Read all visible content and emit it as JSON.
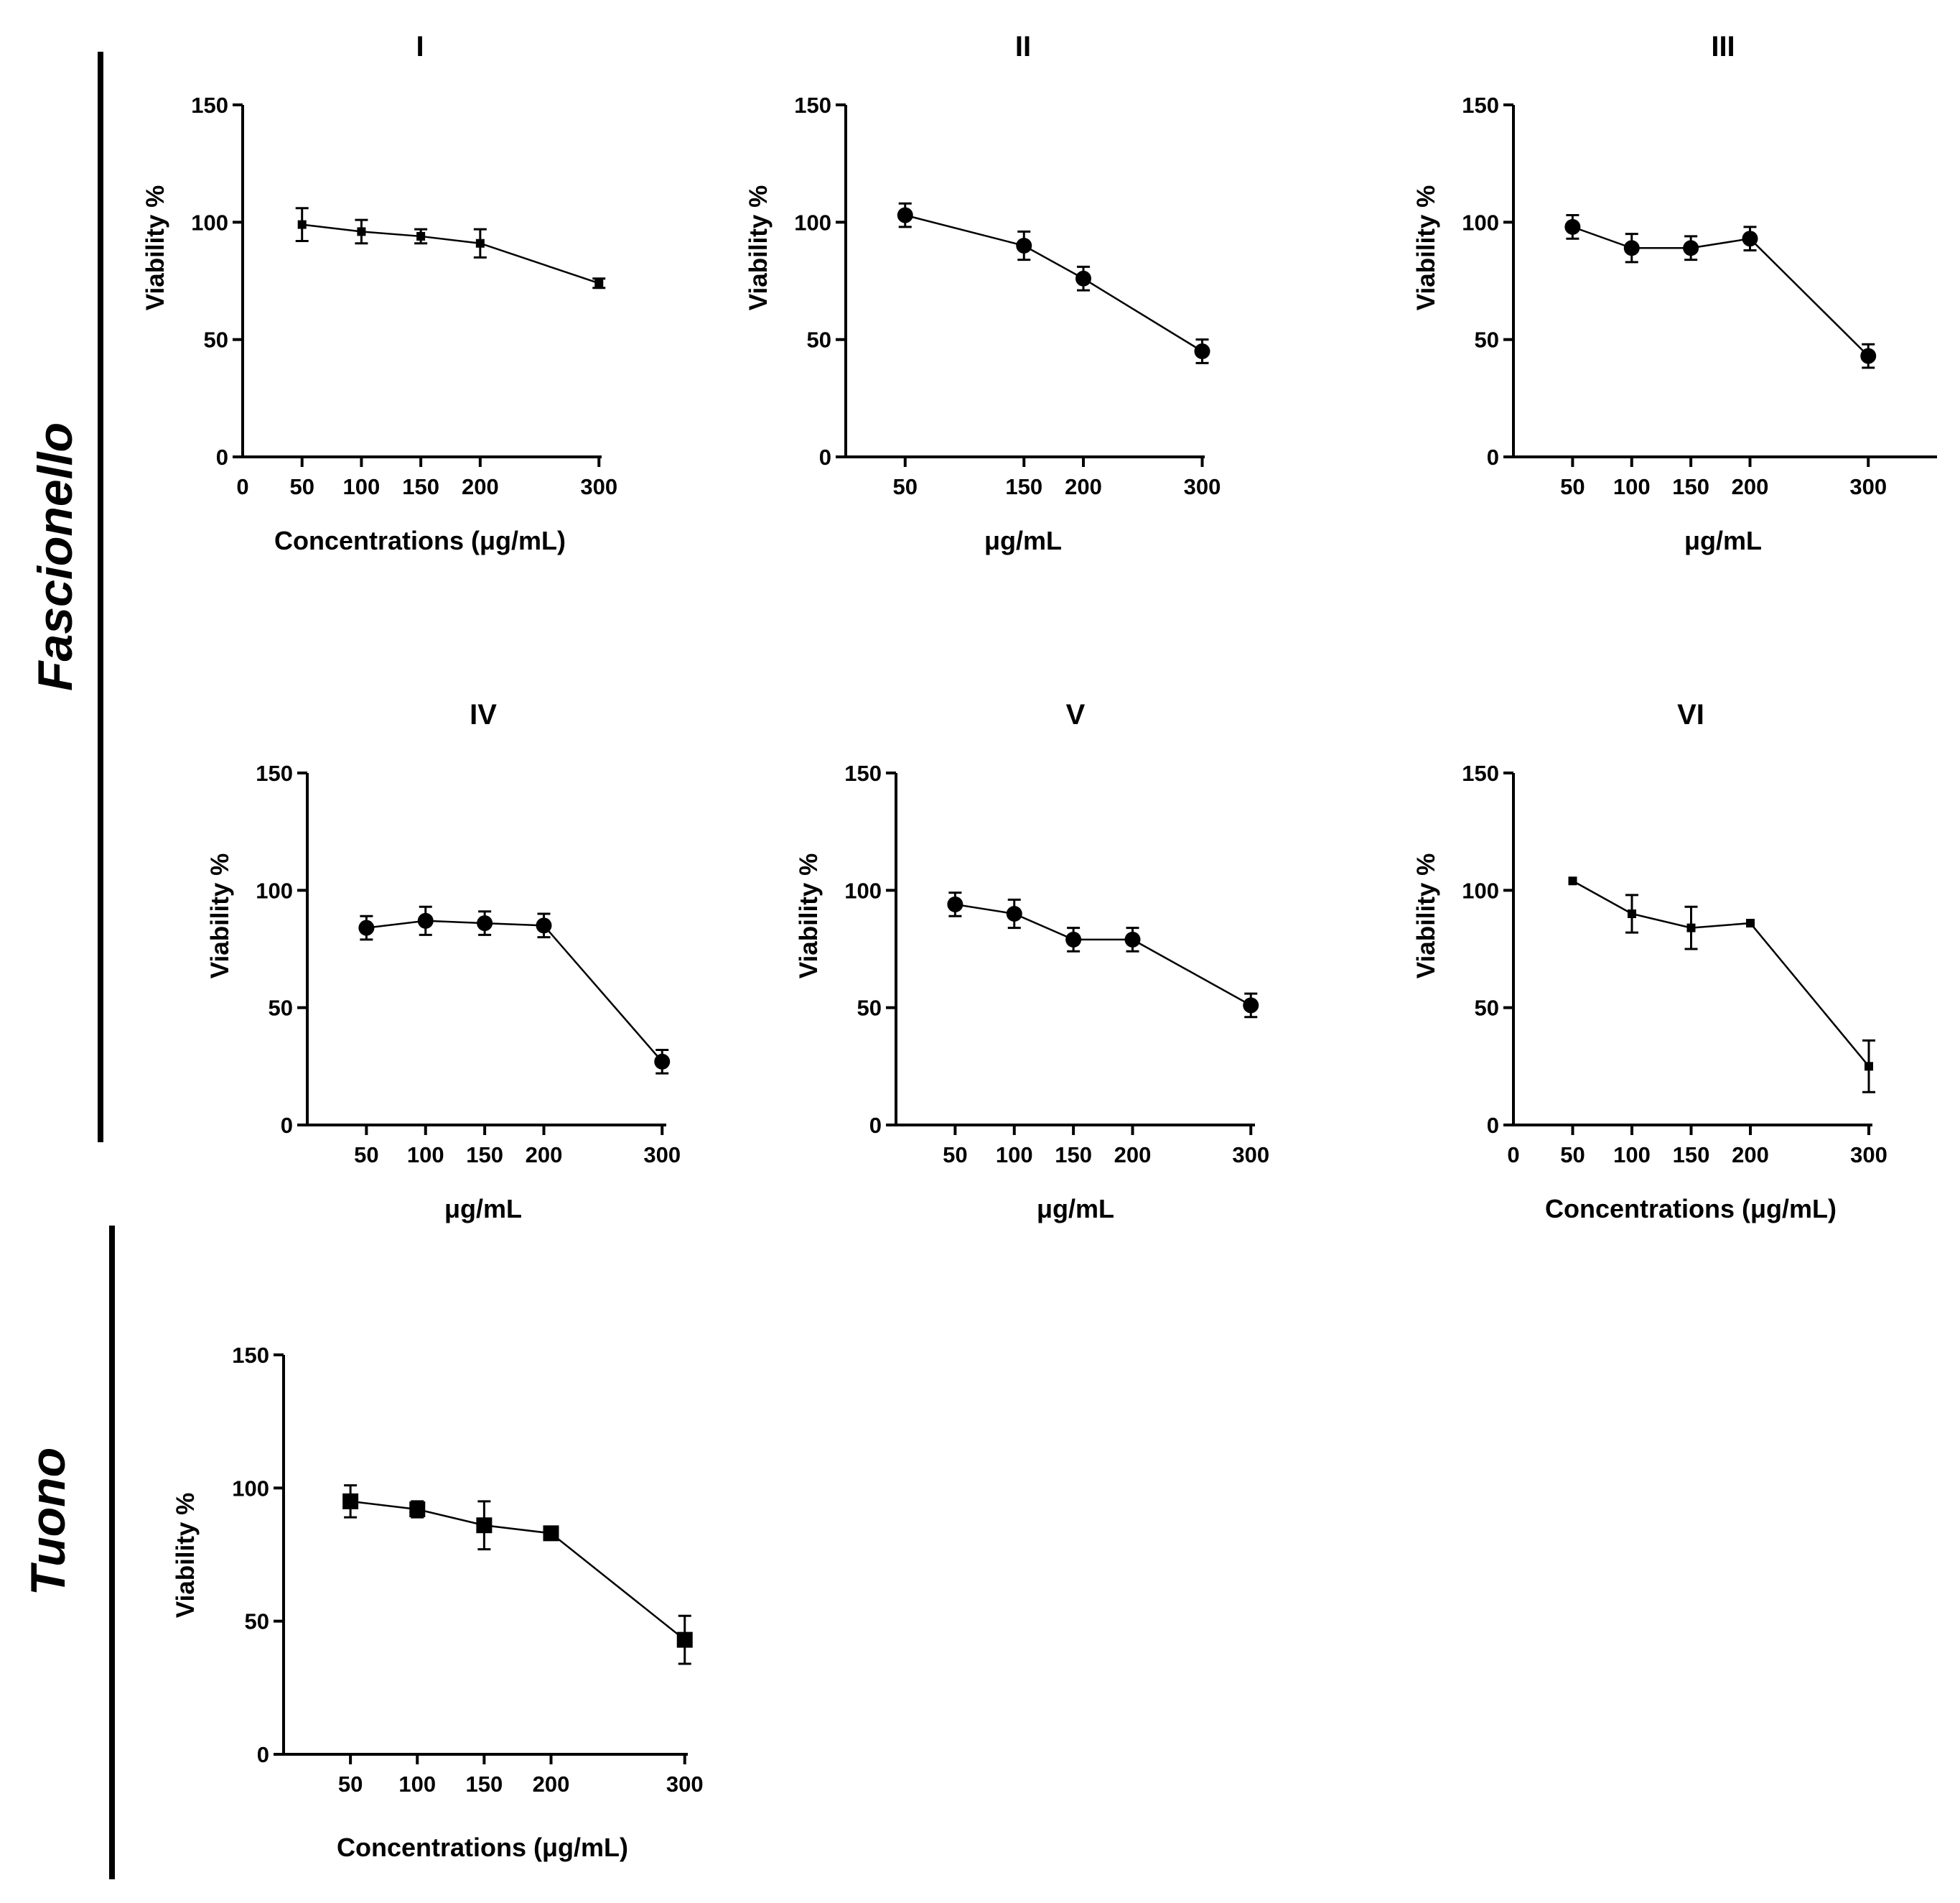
{
  "groups": [
    {
      "label": "Fascionello"
    },
    {
      "label": "Tuono"
    }
  ],
  "chart_data": [
    {
      "type": "line",
      "title": "I",
      "group": "Fascionello",
      "xlabel": "Concentrations (μg/mL)",
      "ylabel": "Viability %",
      "x_ticks": [
        0,
        50,
        100,
        150,
        200,
        300
      ],
      "y_ticks": [
        0,
        50,
        100,
        150
      ],
      "ylim": [
        0,
        150
      ],
      "marker": "square-small",
      "series": [
        {
          "name": "I",
          "x": [
            50,
            100,
            150,
            200,
            300
          ],
          "values": [
            99,
            96,
            94,
            91,
            74
          ],
          "errors": [
            7,
            5,
            3,
            6,
            2
          ]
        }
      ]
    },
    {
      "type": "line",
      "title": "II",
      "group": "Fascionello",
      "xlabel": "μg/mL",
      "ylabel": "Viability %",
      "x_ticks": [
        50,
        150,
        200,
        300
      ],
      "y_ticks": [
        0,
        50,
        100,
        150
      ],
      "ylim": [
        0,
        150
      ],
      "marker": "circle",
      "series": [
        {
          "name": "II",
          "x": [
            50,
            150,
            200,
            300
          ],
          "values": [
            103,
            90,
            76,
            45
          ],
          "errors": [
            5,
            6,
            5,
            5
          ]
        }
      ]
    },
    {
      "type": "line",
      "title": "III",
      "group": "Fascionello",
      "xlabel": "μg/mL",
      "ylabel": "Viability %",
      "x_ticks": [
        50,
        100,
        150,
        200,
        300
      ],
      "y_ticks": [
        0,
        50,
        100,
        150
      ],
      "ylim": [
        0,
        150
      ],
      "marker": "circle",
      "series": [
        {
          "name": "III",
          "x": [
            50,
            100,
            150,
            200,
            300
          ],
          "values": [
            98,
            89,
            89,
            93,
            43
          ],
          "errors": [
            5,
            6,
            5,
            5,
            5
          ]
        }
      ]
    },
    {
      "type": "line",
      "title": "IV",
      "group": "Fascionello",
      "xlabel": "μg/mL",
      "ylabel": "Viability %",
      "x_ticks": [
        50,
        100,
        150,
        200,
        300
      ],
      "y_ticks": [
        0,
        50,
        100,
        150
      ],
      "ylim": [
        0,
        150
      ],
      "marker": "circle",
      "series": [
        {
          "name": "IV",
          "x": [
            50,
            100,
            150,
            200,
            300
          ],
          "values": [
            84,
            87,
            86,
            85,
            27
          ],
          "errors": [
            5,
            6,
            5,
            5,
            5
          ]
        }
      ]
    },
    {
      "type": "line",
      "title": "V",
      "group": "Fascionello",
      "xlabel": "μg/mL",
      "ylabel": "Viability %",
      "x_ticks": [
        50,
        100,
        150,
        200,
        300
      ],
      "y_ticks": [
        0,
        50,
        100,
        150
      ],
      "ylim": [
        0,
        150
      ],
      "marker": "circle",
      "series": [
        {
          "name": "V",
          "x": [
            50,
            100,
            150,
            200,
            300
          ],
          "values": [
            94,
            90,
            79,
            79,
            51
          ],
          "errors": [
            5,
            6,
            5,
            5,
            5
          ]
        }
      ]
    },
    {
      "type": "line",
      "title": "VI",
      "group": "Fascionello",
      "xlabel": "Concentrations (μg/mL)",
      "ylabel": "Viability %",
      "x_ticks": [
        0,
        50,
        100,
        150,
        200,
        300
      ],
      "y_ticks": [
        0,
        50,
        100,
        150
      ],
      "ylim": [
        0,
        150
      ],
      "marker": "square-small",
      "series": [
        {
          "name": "VI",
          "x": [
            50,
            100,
            150,
            200,
            300
          ],
          "values": [
            104,
            90,
            84,
            86,
            25
          ],
          "errors": [
            0,
            8,
            9,
            0,
            11
          ]
        }
      ]
    },
    {
      "type": "line",
      "title": "",
      "group": "Tuono",
      "xlabel": "Concentrations (μg/mL)",
      "ylabel": "Viability %",
      "x_ticks": [
        50,
        100,
        150,
        200,
        300
      ],
      "y_ticks": [
        0,
        50,
        100,
        150
      ],
      "ylim": [
        0,
        150
      ],
      "marker": "square",
      "series": [
        {
          "name": "Tuono",
          "x": [
            50,
            100,
            150,
            200,
            300
          ],
          "values": [
            95,
            92,
            86,
            83,
            43
          ],
          "errors": [
            6,
            3,
            9,
            2,
            9
          ]
        }
      ]
    }
  ]
}
